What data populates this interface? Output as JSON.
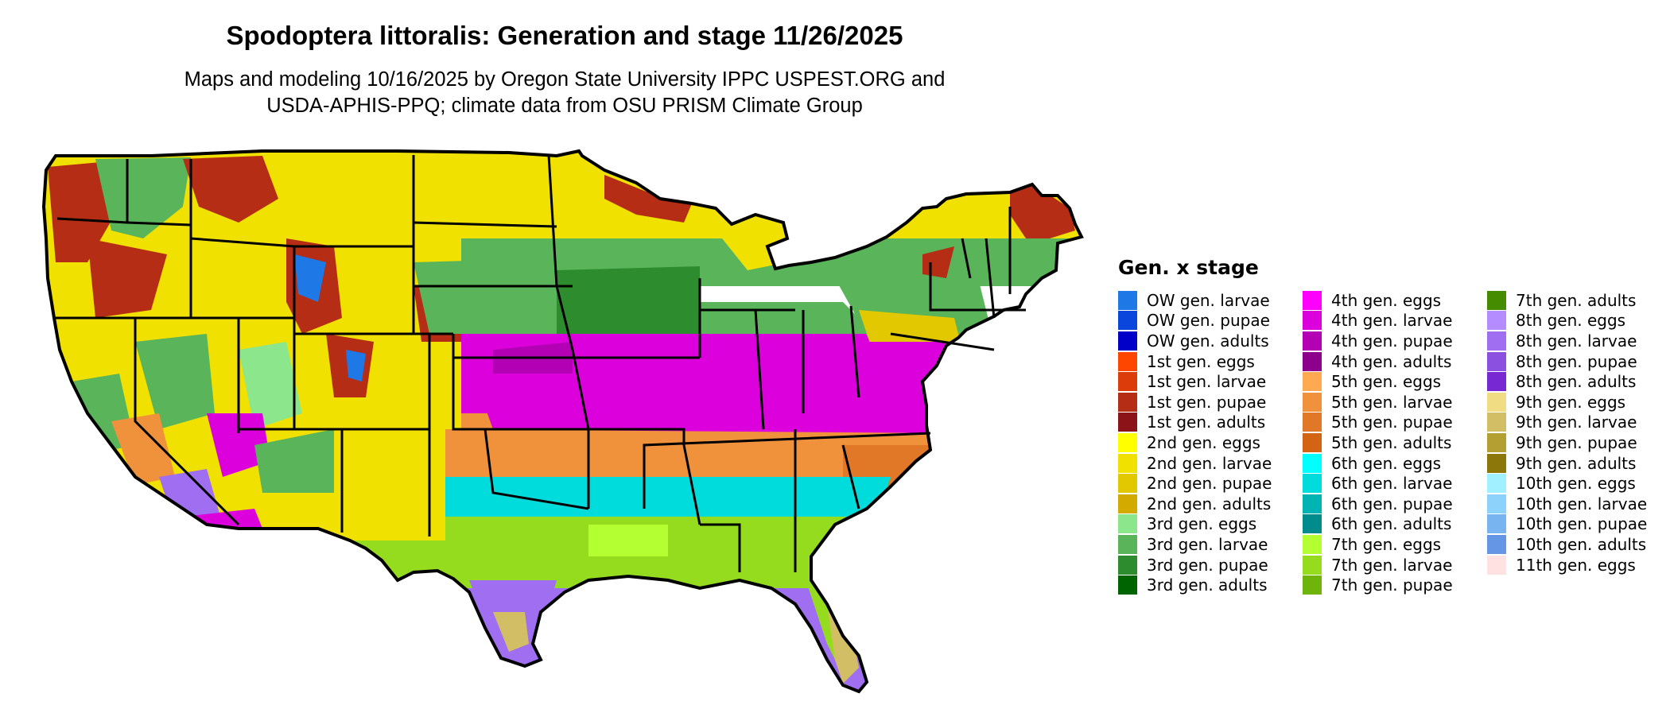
{
  "title": "Spodoptera littoralis: Generation and stage 11/26/2025",
  "subtitle_line1": "Maps and modeling 10/16/2025 by Oregon State University IPPC USPEST.ORG and",
  "subtitle_line2": "USDA-APHIS-PPQ; climate data from OSU PRISM Climate Group",
  "legend": {
    "title": "Gen. x stage",
    "columns": [
      [
        {
          "label": "OW gen. larvae",
          "color": "#1e78e6"
        },
        {
          "label": "OW gen. pupae",
          "color": "#0a46dc"
        },
        {
          "label": "OW gen. adults",
          "color": "#0000c8"
        },
        {
          "label": "1st gen. eggs",
          "color": "#ff4600"
        },
        {
          "label": "1st gen. larvae",
          "color": "#dc3c0a"
        },
        {
          "label": "1st gen. pupae",
          "color": "#b42d14"
        },
        {
          "label": "1st gen. adults",
          "color": "#8c1419"
        },
        {
          "label": "2nd gen. eggs",
          "color": "#ffff00"
        },
        {
          "label": "2nd gen. larvae",
          "color": "#f0e100"
        },
        {
          "label": "2nd gen. pupae",
          "color": "#e1c800"
        },
        {
          "label": "2nd gen. adults",
          "color": "#d2aa00"
        },
        {
          "label": "3rd gen. eggs",
          "color": "#8ce68c"
        },
        {
          "label": "3rd gen. larvae",
          "color": "#5ab45a"
        },
        {
          "label": "3rd gen. pupae",
          "color": "#2d8c2d"
        },
        {
          "label": "3rd gen. adults",
          "color": "#006400"
        }
      ],
      [
        {
          "label": "4th gen. eggs",
          "color": "#ff00ff"
        },
        {
          "label": "4th gen. larvae",
          "color": "#dc00dc"
        },
        {
          "label": "4th gen. pupae",
          "color": "#b400b4"
        },
        {
          "label": "4th gen. adults",
          "color": "#8c008c"
        },
        {
          "label": "5th gen. eggs",
          "color": "#ffaa50"
        },
        {
          "label": "5th gen. larvae",
          "color": "#f0913c"
        },
        {
          "label": "5th gen. pupae",
          "color": "#e17828"
        },
        {
          "label": "5th gen. adults",
          "color": "#d26414"
        },
        {
          "label": "6th gen. eggs",
          "color": "#00ffff"
        },
        {
          "label": "6th gen. larvae",
          "color": "#00dcdc"
        },
        {
          "label": "6th gen. pupae",
          "color": "#00b4b4"
        },
        {
          "label": "6th gen. adults",
          "color": "#008c8c"
        },
        {
          "label": "7th gen. eggs",
          "color": "#b4ff32"
        },
        {
          "label": "7th gen. larvae",
          "color": "#96dc1e"
        },
        {
          "label": "7th gen. pupae",
          "color": "#6eb40a"
        }
      ],
      [
        {
          "label": "7th gen. adults",
          "color": "#468c00"
        },
        {
          "label": "8th gen. eggs",
          "color": "#b48cff"
        },
        {
          "label": "8th gen. larvae",
          "color": "#a06ef0"
        },
        {
          "label": "8th gen. pupae",
          "color": "#8c50e1"
        },
        {
          "label": "8th gen. adults",
          "color": "#7828d2"
        },
        {
          "label": "9th gen. eggs",
          "color": "#f0dc82"
        },
        {
          "label": "9th gen. larvae",
          "color": "#d2be64"
        },
        {
          "label": "9th gen. pupae",
          "color": "#b4a032"
        },
        {
          "label": "9th gen. adults",
          "color": "#8c780a"
        },
        {
          "label": "10th gen. eggs",
          "color": "#a0f0ff"
        },
        {
          "label": "10th gen. larvae",
          "color": "#8cd2fa"
        },
        {
          "label": "10th gen. pupae",
          "color": "#78b4f0"
        },
        {
          "label": "10th gen. adults",
          "color": "#6496e6"
        },
        {
          "label": "11th gen. eggs",
          "color": "#ffe1e1"
        }
      ]
    ]
  }
}
